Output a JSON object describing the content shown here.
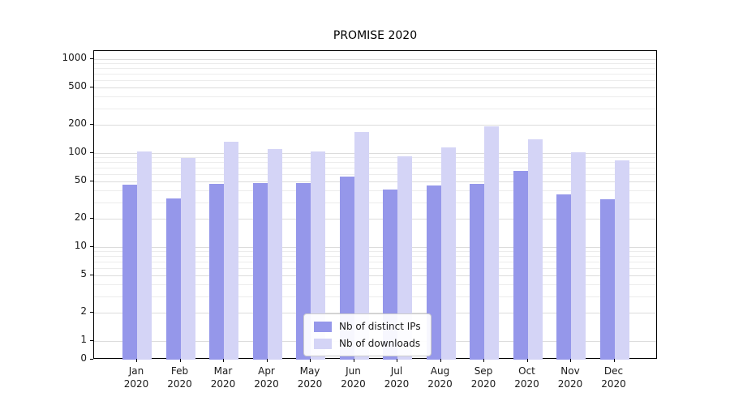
{
  "chart_data": {
    "type": "bar",
    "title": "PROMISE 2020",
    "categories": [
      "Jan",
      "Feb",
      "Mar",
      "Apr",
      "May",
      "Jun",
      "Jul",
      "Aug",
      "Sep",
      "Oct",
      "Nov",
      "Dec"
    ],
    "year": "2020",
    "series": [
      {
        "name": "Nb of distinct IPs",
        "color": "#9597ea",
        "values": [
          46,
          33,
          47,
          48,
          48,
          56,
          41,
          45,
          47,
          65,
          36,
          32
        ]
      },
      {
        "name": "Nb of downloads",
        "color": "#d4d4f6",
        "values": [
          104,
          88,
          131,
          110,
          104,
          166,
          93,
          116,
          191,
          141,
          102,
          83
        ]
      }
    ],
    "yticks": [
      0,
      1,
      2,
      5,
      10,
      20,
      50,
      100,
      200,
      500,
      1000
    ],
    "scale": "symlog",
    "ylim": [
      0,
      1500
    ],
    "grid": true,
    "legend_position": "lower center"
  }
}
